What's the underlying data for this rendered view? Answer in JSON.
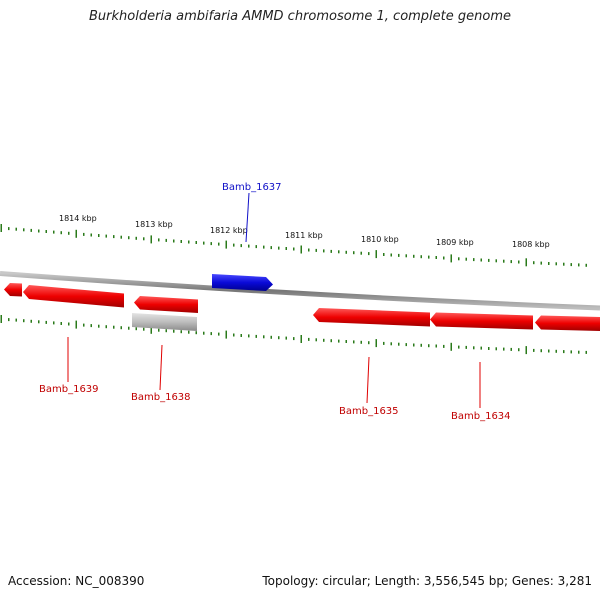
{
  "title": "Burkholderia ambifaria AMMD chromosome 1, complete genome",
  "footer": {
    "accession": "Accession: NC_008390",
    "summary": "Topology: circular; Length: 3,556,545 bp; Genes: 3,281"
  },
  "colors": {
    "forward_gene": "#1010c8",
    "reverse_gene": "#e00000",
    "pseudo_gene": "#b8b8b8",
    "ticks": "#2a7a1a",
    "backbone": "#8a8a8a"
  },
  "scale": {
    "tick_labels": [
      "1814 kbp",
      "1813 kbp",
      "1812 kbp",
      "1811 kbp",
      "1810 kbp",
      "1809 kbp",
      "1808 kbp"
    ]
  },
  "genes": {
    "labels": [
      "Bamb_1637",
      "Bamb_1639",
      "Bamb_1638",
      "Bamb_1635",
      "Bamb_1634"
    ]
  }
}
